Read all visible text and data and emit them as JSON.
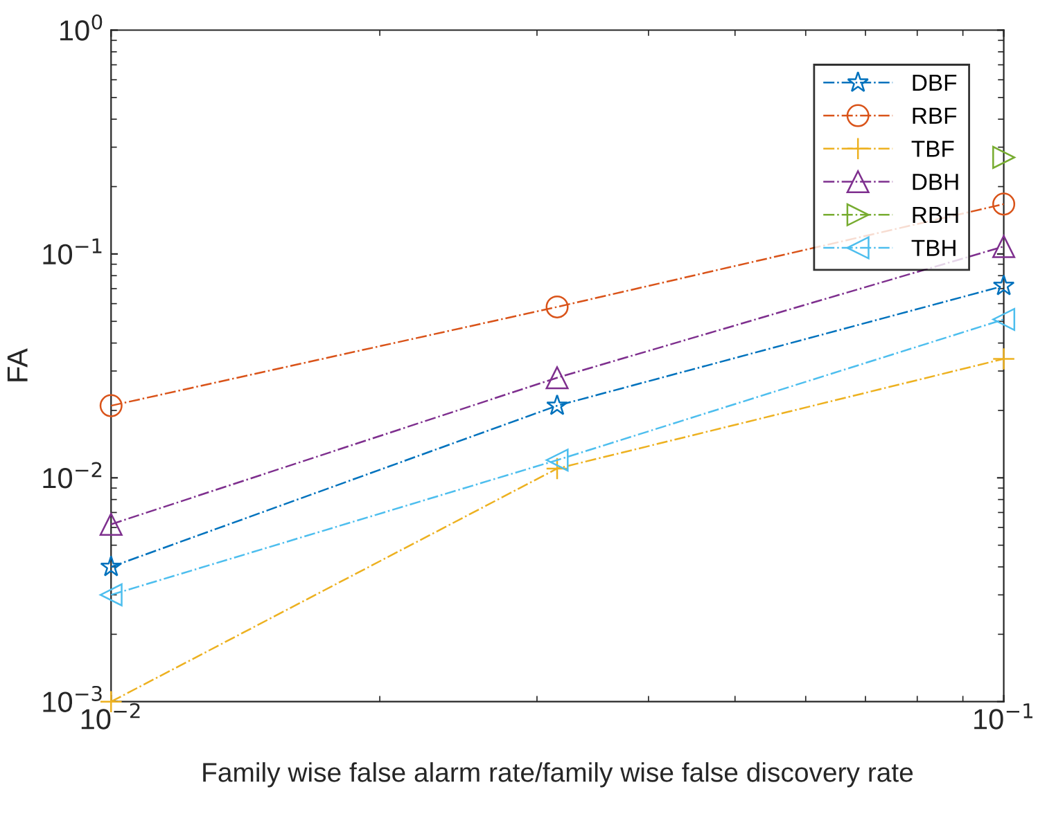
{
  "chart_data": {
    "type": "line",
    "xlabel": "Family wise false alarm rate/family wise false discovery rate",
    "ylabel": "FA",
    "log": "xy",
    "x": [
      0.01,
      0.0316,
      0.1
    ],
    "xlim": [
      0.01,
      0.1
    ],
    "ylim": [
      0.001,
      1
    ],
    "xticks": [
      {
        "value": 0.01,
        "label": "10$^{−2}$"
      },
      {
        "value": 0.1,
        "label": "10$^{−1}$"
      }
    ],
    "yticks": [
      {
        "value": 0.001,
        "label": "10$^{−3}$"
      },
      {
        "value": 0.01,
        "label": "10$^{−2}$"
      },
      {
        "value": 0.1,
        "label": "10$^{−1}$"
      },
      {
        "value": 1,
        "label": "10$^{0}$"
      }
    ],
    "grid": false,
    "legend": "top right",
    "line_style": "dashdot",
    "series": [
      {
        "name": "DBF",
        "color": "#0072bd",
        "marker": "star",
        "values": [
          0.004,
          0.021,
          0.072
        ]
      },
      {
        "name": "RBF",
        "color": "#d95319",
        "marker": "circle",
        "values": [
          0.021,
          0.058,
          0.167
        ]
      },
      {
        "name": "TBF",
        "color": "#edb120",
        "marker": "cross",
        "values": [
          0.001,
          0.011,
          0.034
        ]
      },
      {
        "name": "DBH",
        "color": "#7e2f8e",
        "marker": "triangle",
        "values": [
          0.0062,
          0.028,
          0.108
        ]
      },
      {
        "name": "RBH",
        "color": "#77ac30",
        "marker": "triangle-right",
        "values": [
          null,
          null,
          0.27
        ]
      },
      {
        "name": "TBH",
        "color": "#4dbeee",
        "marker": "triangle-left",
        "values": [
          0.003,
          0.012,
          0.051
        ]
      }
    ]
  }
}
